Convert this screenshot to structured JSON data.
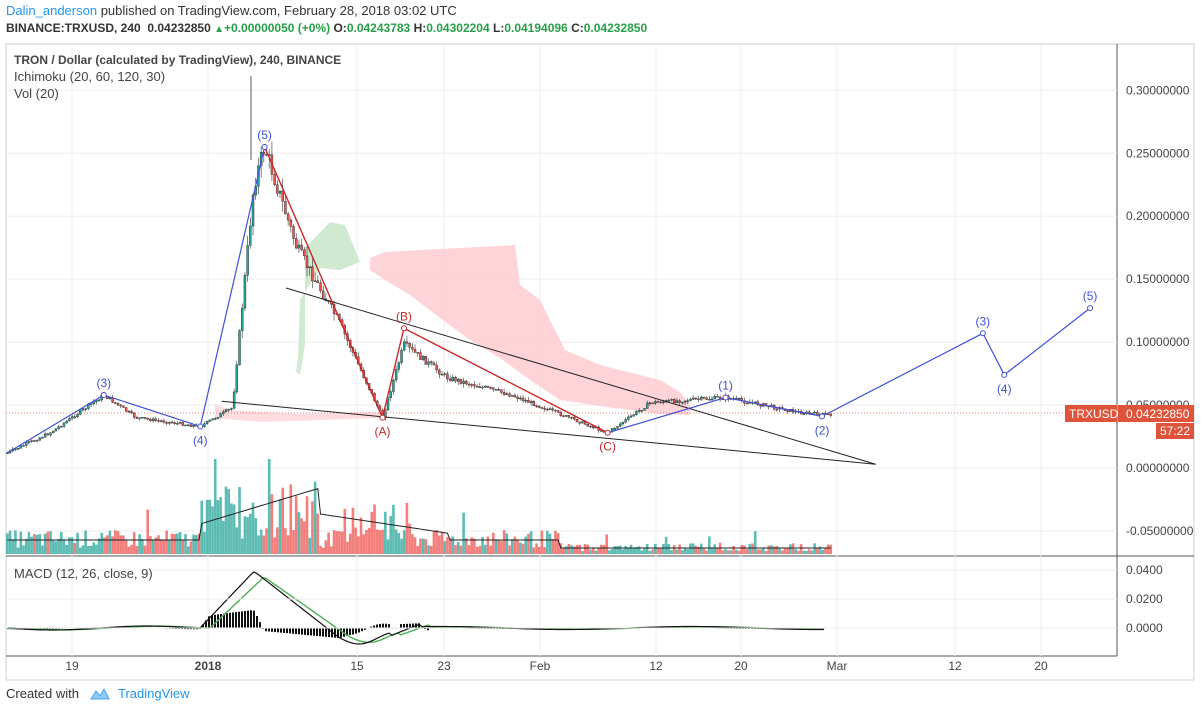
{
  "header": {
    "user": "Dalin_anderson",
    "published_text": "published on TradingView.com, February 28, 2018 03:02 UTC"
  },
  "quote": {
    "symbol": "BINANCE:TRXUSD, 240",
    "price": "0.04232850",
    "change": "+0.00000050 (+0%)",
    "o_label": "O:",
    "o": "0.04243783",
    "h_label": "H:",
    "h": "0.04302204",
    "l_label": "L:",
    "l": "0.04194096",
    "c_label": "C:",
    "c": "0.04232850"
  },
  "legend": {
    "title": "TRON / Dollar (calculated by TradingView), 240, BINANCE",
    "ichimoku": "Ichimoku (20, 60, 120, 30)",
    "vol": "Vol (20)",
    "macd": "MACD (12, 26, close, 9)"
  },
  "price_tag": {
    "label": "TRXUSD",
    "value": "0.04232850",
    "countdown": "57:22"
  },
  "footer": {
    "created": "Created with",
    "brand": "TradingView"
  },
  "colors": {
    "up": "#26a69a",
    "down": "#ef5350",
    "wave_blue": "#3f51d8",
    "wave_red": "#c62828",
    "cloud_red": "#ffcdd2",
    "cloud_green": "#c8e6c9",
    "tag": "#e0533b"
  },
  "chart_data": {
    "type": "line",
    "y_axis": {
      "ticks": [
        "0.30000000",
        "0.25000000",
        "0.20000000",
        "0.15000000",
        "0.10000000",
        "0.05000000",
        "0.00000000",
        "-0.05000000"
      ],
      "range": [
        -0.067,
        0.335
      ]
    },
    "x_axis": {
      "ticks": [
        "19",
        "2018",
        "15",
        "23",
        "Feb",
        "12",
        "20",
        "Mar",
        "12",
        "20"
      ]
    },
    "macd_axis": {
      "ticks": [
        "0.0400",
        "0.0200",
        "0.0000"
      ]
    },
    "price_series": [
      {
        "t": "Dec 12",
        "v": 0.012
      },
      {
        "t": "Dec 16",
        "v": 0.028
      },
      {
        "t": "Dec 21",
        "v": 0.058
      },
      {
        "t": "Dec 24",
        "v": 0.04
      },
      {
        "t": "Dec 30",
        "v": 0.033
      },
      {
        "t": "Jan 2",
        "v": 0.048
      },
      {
        "t": "Jan 4",
        "v": 0.225
      },
      {
        "t": "Jan 5",
        "v": 0.255
      },
      {
        "t": "Jan 8",
        "v": 0.175
      },
      {
        "t": "Jan 12",
        "v": 0.115
      },
      {
        "t": "Jan 16",
        "v": 0.04
      },
      {
        "t": "Jan 18",
        "v": 0.098
      },
      {
        "t": "Jan 22",
        "v": 0.072
      },
      {
        "t": "Jan 28",
        "v": 0.058
      },
      {
        "t": "Feb 6",
        "v": 0.028
      },
      {
        "t": "Feb 10",
        "v": 0.052
      },
      {
        "t": "Feb 17",
        "v": 0.056
      },
      {
        "t": "Feb 24",
        "v": 0.044
      },
      {
        "t": "Feb 27",
        "v": 0.042
      }
    ],
    "wave_labels_blue": [
      {
        "label": "(3)",
        "t": "Dec 21",
        "v": 0.058
      },
      {
        "label": "(4)",
        "t": "Dec 30",
        "v": 0.033
      },
      {
        "label": "(5)",
        "t": "Jan 5",
        "v": 0.255
      },
      {
        "label": "(1)",
        "t": "Feb 17",
        "v": 0.056
      },
      {
        "label": "(2)",
        "t": "Feb 26",
        "v": 0.041
      },
      {
        "label": "(3)",
        "t": "Mar 13",
        "v": 0.107
      },
      {
        "label": "(4)",
        "t": "Mar 15",
        "v": 0.074
      },
      {
        "label": "(5)",
        "t": "Mar 23",
        "v": 0.127
      }
    ],
    "wave_labels_red": [
      {
        "label": "(A)",
        "t": "Jan 16",
        "v": 0.04
      },
      {
        "label": "(B)",
        "t": "Jan 18",
        "v": 0.111
      },
      {
        "label": "(C)",
        "t": "Feb 6",
        "v": 0.028
      }
    ],
    "projection": [
      {
        "t": "Feb 26",
        "v": 0.041
      },
      {
        "t": "Mar 13",
        "v": 0.107
      },
      {
        "t": "Mar 15",
        "v": 0.074
      },
      {
        "t": "Mar 23",
        "v": 0.127
      }
    ],
    "wedge_lines": [
      [
        {
          "t": "Jan 7",
          "v": 0.143
        },
        {
          "t": "Mar 3",
          "v": 0.003
        }
      ],
      [
        {
          "t": "Jan 1",
          "v": 0.053
        },
        {
          "t": "Mar 3",
          "v": 0.003
        }
      ]
    ]
  }
}
